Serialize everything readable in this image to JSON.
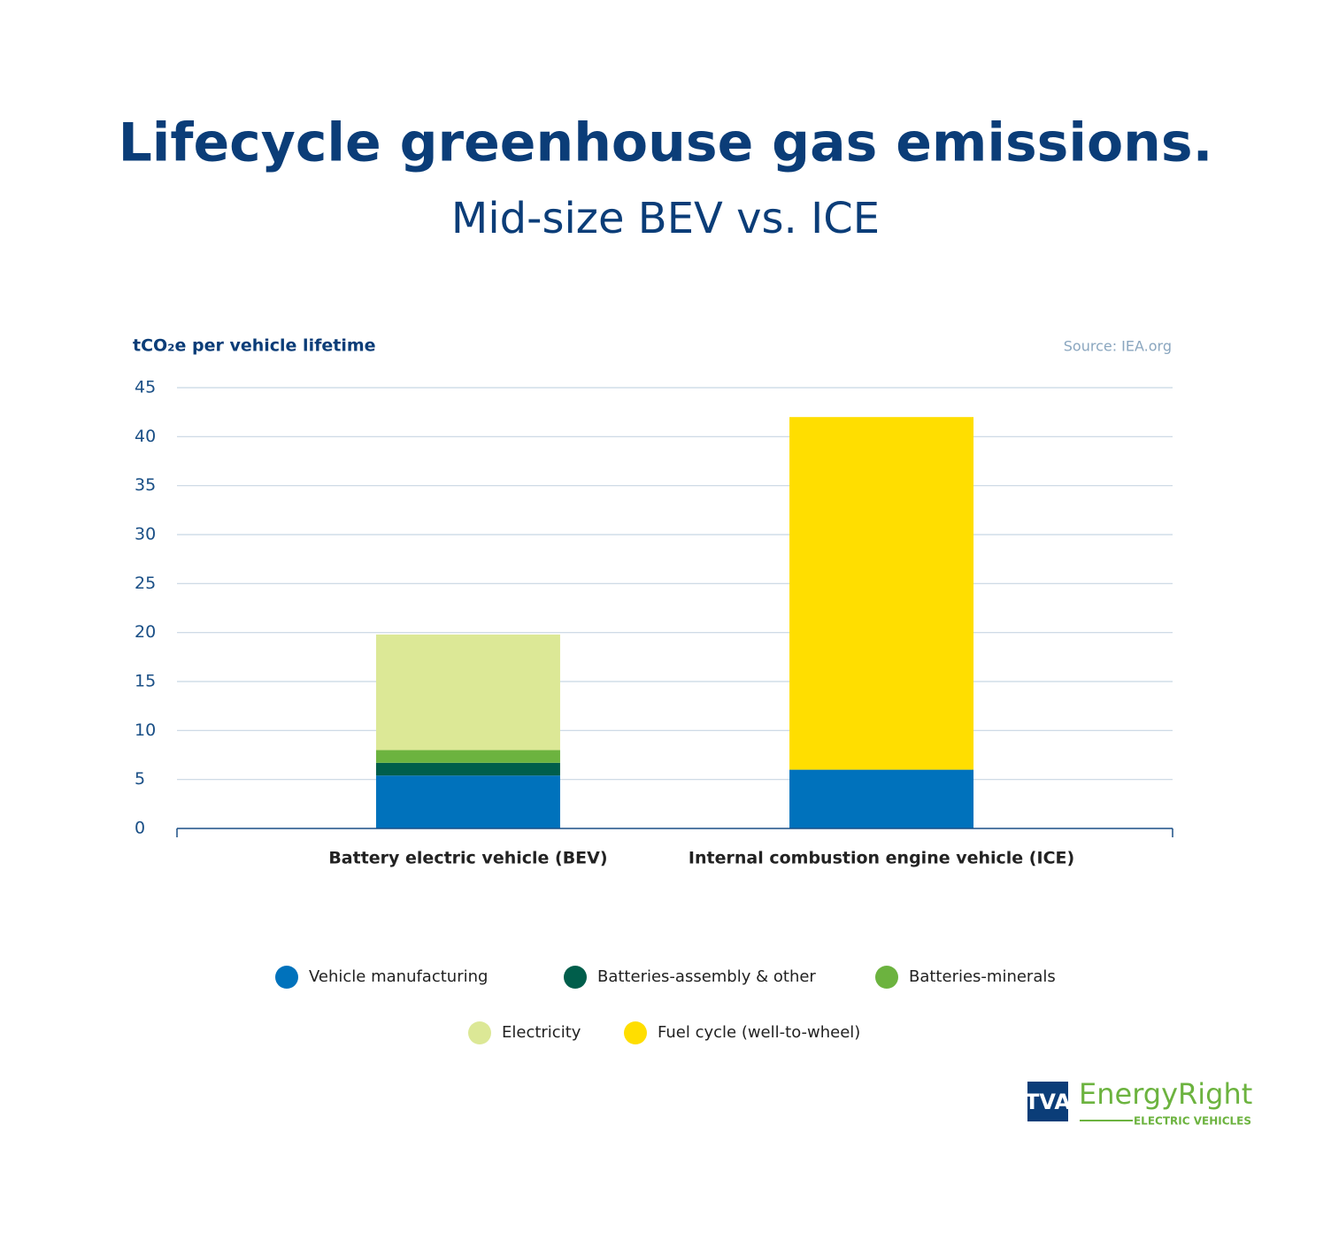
{
  "chart_data": {
    "type": "stacked-bar",
    "title": "Lifecycle greenhouse gas emissions.",
    "subtitle": "Mid-size BEV vs. ICE",
    "y_label": "tCO₂e per vehicle lifetime",
    "source": "Source: IEA.org",
    "categories": [
      "Battery electric vehicle (BEV)",
      "Internal combustion engine vehicle (ICE)"
    ],
    "series": [
      {
        "name": "Vehicle manufacturing",
        "color": "#0072bc",
        "values": [
          5.4,
          6
        ]
      },
      {
        "name": "Batteries-assembly & other",
        "color": "#005e4b",
        "values": [
          1.3,
          null
        ]
      },
      {
        "name": "Batteries-minerals",
        "color": "#6cb33f",
        "values": [
          1.3,
          null
        ]
      },
      {
        "name": "Electricity",
        "color": "#dce896",
        "values": [
          11.8,
          null
        ]
      },
      {
        "name": "Fuel cycle (well-to-wheel)",
        "color": "#ffde00",
        "values": [
          null,
          36
        ]
      }
    ],
    "ylim": [
      0,
      45
    ],
    "yticks": [
      0,
      5,
      10,
      15,
      20,
      25,
      30,
      35,
      40,
      45
    ],
    "grid": true
  },
  "branding": {
    "mark": "TVA",
    "name": "EnergyRight",
    "tagline": "ELECTRIC VEHICLES"
  }
}
